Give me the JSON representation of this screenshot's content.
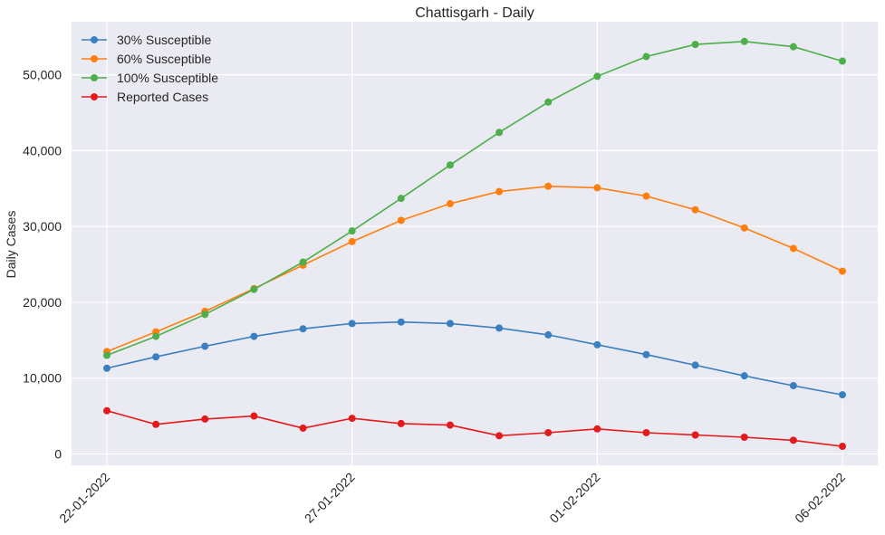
{
  "chart_data": {
    "type": "line",
    "title": "Chattisgarh - Daily",
    "xlabel": "",
    "ylabel": "Daily Cases",
    "ylim": [
      -1500,
      57000
    ],
    "yticks": [
      0,
      10000,
      20000,
      30000,
      40000,
      50000
    ],
    "ytick_labels": [
      "0",
      "10,000",
      "20,000",
      "30,000",
      "40,000",
      "50,000"
    ],
    "x": [
      "22-01-2022",
      "23-01-2022",
      "24-01-2022",
      "25-01-2022",
      "26-01-2022",
      "27-01-2022",
      "28-01-2022",
      "29-01-2022",
      "30-01-2022",
      "31-01-2022",
      "01-02-2022",
      "02-02-2022",
      "03-02-2022",
      "04-02-2022",
      "05-02-2022",
      "06-02-2022"
    ],
    "xticks": [
      "22-01-2022",
      "27-01-2022",
      "01-02-2022",
      "06-02-2022"
    ],
    "grid": true,
    "legend_position": "top-left",
    "background": "#eaeaf2",
    "series": [
      {
        "name": "30% Susceptible",
        "color": "#3a7fbf",
        "values": [
          11300,
          12800,
          14200,
          15500,
          16500,
          17200,
          17400,
          17200,
          16600,
          15700,
          14400,
          13100,
          11700,
          10300,
          9000,
          7800
        ]
      },
      {
        "name": "60% Susceptible",
        "color": "#ff7f0e",
        "values": [
          13500,
          16100,
          18800,
          21800,
          24900,
          28000,
          30800,
          33000,
          34600,
          35300,
          35100,
          34000,
          32200,
          29800,
          27100,
          24100
        ]
      },
      {
        "name": "100% Susceptible",
        "color": "#4daf4a",
        "values": [
          13000,
          15500,
          18400,
          21700,
          25300,
          29400,
          33700,
          38100,
          42400,
          46400,
          49800,
          52400,
          54000,
          54400,
          53700,
          51800
        ]
      },
      {
        "name": "Reported Cases",
        "color": "#e41a1c",
        "values": [
          5700,
          3900,
          4600,
          5000,
          3400,
          4700,
          4000,
          3800,
          2400,
          2800,
          3300,
          2800,
          2500,
          2200,
          1800,
          1000
        ]
      }
    ]
  }
}
